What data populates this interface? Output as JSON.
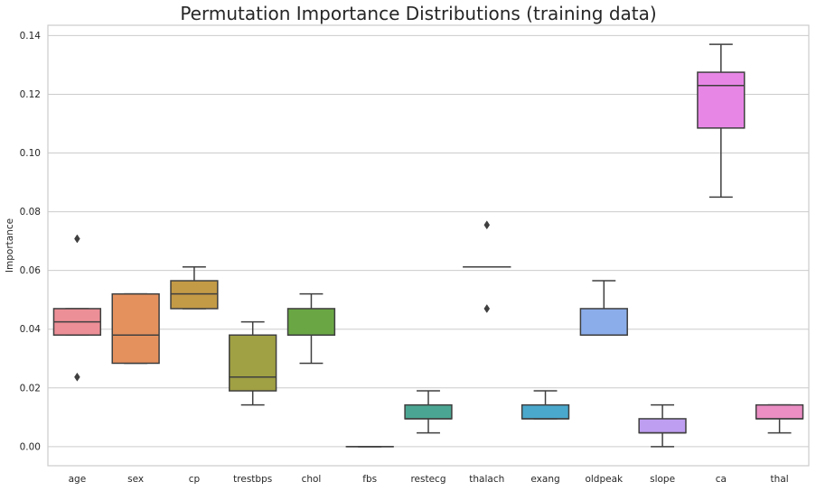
{
  "chart_data": {
    "type": "box",
    "title": "Permutation Importance Distributions (training data)",
    "xlabel": "",
    "ylabel": "Importance",
    "ylim": [
      -0.0065,
      0.1435
    ],
    "yticks": [
      0.0,
      0.02,
      0.04,
      0.06,
      0.08,
      0.1,
      0.12,
      0.14
    ],
    "ytick_labels": [
      "0.00",
      "0.02",
      "0.04",
      "0.06",
      "0.08",
      "0.10",
      "0.12",
      "0.14"
    ],
    "grid": "horizontal",
    "categories": [
      "age",
      "sex",
      "cp",
      "trestbps",
      "chol",
      "fbs",
      "restecg",
      "thalach",
      "exang",
      "oldpeak",
      "slope",
      "ca",
      "thal"
    ],
    "boxes": [
      {
        "name": "age",
        "color": "#ed8f97",
        "whislo": 0.038,
        "q1": 0.038,
        "med": 0.0425,
        "q3": 0.047,
        "whishi": 0.047,
        "fliers": [
          0.0237,
          0.0708
        ]
      },
      {
        "name": "sex",
        "color": "#e5915e",
        "whislo": 0.0284,
        "q1": 0.0284,
        "med": 0.038,
        "q3": 0.052,
        "whishi": 0.052,
        "fliers": []
      },
      {
        "name": "cp",
        "color": "#c39a46",
        "whislo": 0.047,
        "q1": 0.047,
        "med": 0.052,
        "q3": 0.0565,
        "whishi": 0.0612,
        "fliers": []
      },
      {
        "name": "trestbps",
        "color": "#a0a044",
        "whislo": 0.0142,
        "q1": 0.019,
        "med": 0.0237,
        "q3": 0.038,
        "whishi": 0.0425,
        "fliers": []
      },
      {
        "name": "chol",
        "color": "#6aa744",
        "whislo": 0.0284,
        "q1": 0.038,
        "med": 0.038,
        "q3": 0.047,
        "whishi": 0.052,
        "fliers": []
      },
      {
        "name": "fbs",
        "color": "#4aa865",
        "whislo": 0.0,
        "q1": 0.0,
        "med": 0.0,
        "q3": 0.0,
        "whishi": 0.0,
        "fliers": []
      },
      {
        "name": "restecg",
        "color": "#4aa692",
        "whislo": 0.0047,
        "q1": 0.0095,
        "med": 0.0095,
        "q3": 0.0142,
        "whishi": 0.019,
        "fliers": []
      },
      {
        "name": "thalach",
        "color": "#4ba5a8",
        "whislo": 0.0612,
        "q1": 0.0612,
        "med": 0.0612,
        "q3": 0.0612,
        "whishi": 0.0612,
        "fliers": [
          0.047,
          0.0755
        ]
      },
      {
        "name": "exang",
        "color": "#4aa8cc",
        "whislo": 0.0095,
        "q1": 0.0095,
        "med": 0.0095,
        "q3": 0.0142,
        "whishi": 0.019,
        "fliers": []
      },
      {
        "name": "oldpeak",
        "color": "#8badea",
        "whislo": 0.038,
        "q1": 0.038,
        "med": 0.038,
        "q3": 0.047,
        "whishi": 0.0565,
        "fliers": []
      },
      {
        "name": "slope",
        "color": "#be9ef0",
        "whislo": 0.0,
        "q1": 0.0047,
        "med": 0.0047,
        "q3": 0.0095,
        "whishi": 0.0142,
        "fliers": []
      },
      {
        "name": "ca",
        "color": "#e886e6",
        "whislo": 0.085,
        "q1": 0.1085,
        "med": 0.123,
        "q3": 0.1275,
        "whishi": 0.137,
        "fliers": []
      },
      {
        "name": "thal",
        "color": "#eb8ec4",
        "whislo": 0.0047,
        "q1": 0.0095,
        "med": 0.0095,
        "q3": 0.0142,
        "whishi": 0.0142,
        "fliers": []
      }
    ]
  }
}
